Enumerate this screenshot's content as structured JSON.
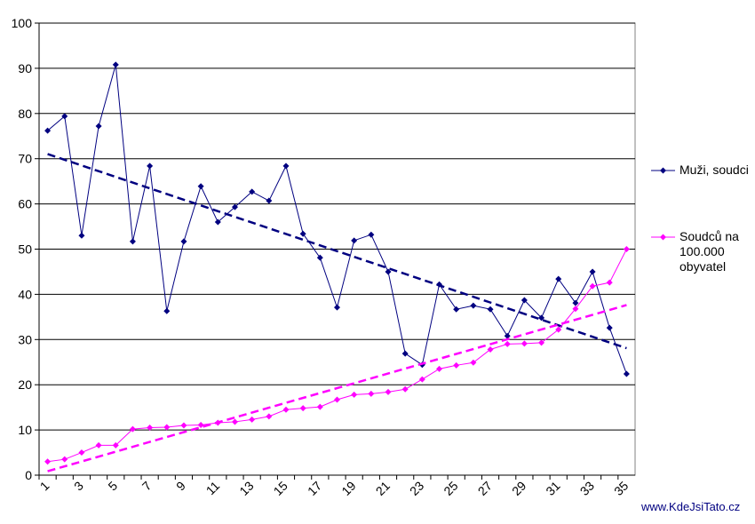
{
  "chart_data": {
    "type": "line",
    "categories": [
      "1",
      null,
      "3",
      null,
      "5",
      null,
      "7",
      null,
      "9",
      null,
      "11",
      null,
      "13",
      null,
      "15",
      null,
      "17",
      null,
      "19",
      null,
      "21",
      null,
      "23",
      null,
      "25",
      null,
      "27",
      null,
      "29",
      null,
      "31",
      null,
      "33",
      null,
      "35"
    ],
    "series": [
      {
        "name": "Muži, soudci",
        "color": "#000080",
        "trendline": true,
        "values": [
          76.2,
          79.4,
          53,
          77.2,
          90.8,
          51.7,
          68.4,
          36.3,
          51.7,
          63.9,
          56,
          59.3,
          62.7,
          60.7,
          68.4,
          53.4,
          48.1,
          37.1,
          51.9,
          53.2,
          45,
          26.9,
          24.4,
          42.2,
          36.7,
          37.5,
          36.7,
          30.8,
          38.7,
          34.8,
          43.4,
          38.1,
          45,
          32.6,
          22.4
        ]
      },
      {
        "name": "Soudců na 100.000 obyvatel",
        "color": "#ff00ff",
        "trendline": true,
        "values": [
          3,
          3.5,
          5,
          6.6,
          6.6,
          10.2,
          10.5,
          10.6,
          11,
          11.1,
          11.6,
          11.8,
          12.3,
          13,
          14.5,
          14.8,
          15.1,
          16.7,
          17.8,
          18,
          18.4,
          19,
          21.2,
          23.5,
          24.3,
          24.9,
          27.8,
          29,
          29.1,
          29.3,
          32.2,
          36.8,
          41.8,
          42.6,
          50
        ]
      }
    ],
    "ylim": [
      0,
      100
    ],
    "yticks": [
      0,
      10,
      20,
      30,
      40,
      50,
      60,
      70,
      80,
      90,
      100
    ],
    "grid": true,
    "legend": "right",
    "source": "www.KdeJsiTato.cz"
  }
}
